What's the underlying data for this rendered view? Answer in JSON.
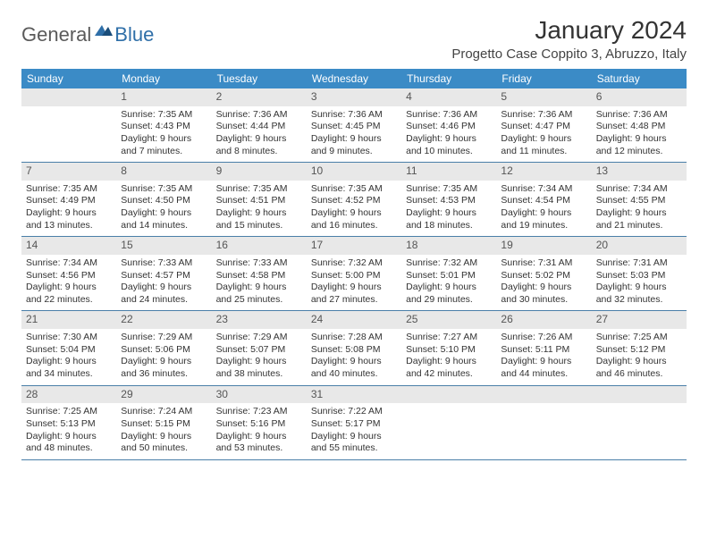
{
  "logo": {
    "text1": "General",
    "text2": "Blue"
  },
  "title": "January 2024",
  "location": "Progetto Case Coppito 3, Abruzzo, Italy",
  "colors": {
    "header_bg": "#3b8bc6",
    "header_text": "#ffffff",
    "daynum_bg": "#e8e8e8",
    "week_divider": "#4a7fa8",
    "body_text": "#333333"
  },
  "daysOfWeek": [
    "Sunday",
    "Monday",
    "Tuesday",
    "Wednesday",
    "Thursday",
    "Friday",
    "Saturday"
  ],
  "weeks": [
    [
      {
        "n": "",
        "sr": "",
        "ss": "",
        "dl": ""
      },
      {
        "n": "1",
        "sr": "Sunrise: 7:35 AM",
        "ss": "Sunset: 4:43 PM",
        "dl": "Daylight: 9 hours and 7 minutes."
      },
      {
        "n": "2",
        "sr": "Sunrise: 7:36 AM",
        "ss": "Sunset: 4:44 PM",
        "dl": "Daylight: 9 hours and 8 minutes."
      },
      {
        "n": "3",
        "sr": "Sunrise: 7:36 AM",
        "ss": "Sunset: 4:45 PM",
        "dl": "Daylight: 9 hours and 9 minutes."
      },
      {
        "n": "4",
        "sr": "Sunrise: 7:36 AM",
        "ss": "Sunset: 4:46 PM",
        "dl": "Daylight: 9 hours and 10 minutes."
      },
      {
        "n": "5",
        "sr": "Sunrise: 7:36 AM",
        "ss": "Sunset: 4:47 PM",
        "dl": "Daylight: 9 hours and 11 minutes."
      },
      {
        "n": "6",
        "sr": "Sunrise: 7:36 AM",
        "ss": "Sunset: 4:48 PM",
        "dl": "Daylight: 9 hours and 12 minutes."
      }
    ],
    [
      {
        "n": "7",
        "sr": "Sunrise: 7:35 AM",
        "ss": "Sunset: 4:49 PM",
        "dl": "Daylight: 9 hours and 13 minutes."
      },
      {
        "n": "8",
        "sr": "Sunrise: 7:35 AM",
        "ss": "Sunset: 4:50 PM",
        "dl": "Daylight: 9 hours and 14 minutes."
      },
      {
        "n": "9",
        "sr": "Sunrise: 7:35 AM",
        "ss": "Sunset: 4:51 PM",
        "dl": "Daylight: 9 hours and 15 minutes."
      },
      {
        "n": "10",
        "sr": "Sunrise: 7:35 AM",
        "ss": "Sunset: 4:52 PM",
        "dl": "Daylight: 9 hours and 16 minutes."
      },
      {
        "n": "11",
        "sr": "Sunrise: 7:35 AM",
        "ss": "Sunset: 4:53 PM",
        "dl": "Daylight: 9 hours and 18 minutes."
      },
      {
        "n": "12",
        "sr": "Sunrise: 7:34 AM",
        "ss": "Sunset: 4:54 PM",
        "dl": "Daylight: 9 hours and 19 minutes."
      },
      {
        "n": "13",
        "sr": "Sunrise: 7:34 AM",
        "ss": "Sunset: 4:55 PM",
        "dl": "Daylight: 9 hours and 21 minutes."
      }
    ],
    [
      {
        "n": "14",
        "sr": "Sunrise: 7:34 AM",
        "ss": "Sunset: 4:56 PM",
        "dl": "Daylight: 9 hours and 22 minutes."
      },
      {
        "n": "15",
        "sr": "Sunrise: 7:33 AM",
        "ss": "Sunset: 4:57 PM",
        "dl": "Daylight: 9 hours and 24 minutes."
      },
      {
        "n": "16",
        "sr": "Sunrise: 7:33 AM",
        "ss": "Sunset: 4:58 PM",
        "dl": "Daylight: 9 hours and 25 minutes."
      },
      {
        "n": "17",
        "sr": "Sunrise: 7:32 AM",
        "ss": "Sunset: 5:00 PM",
        "dl": "Daylight: 9 hours and 27 minutes."
      },
      {
        "n": "18",
        "sr": "Sunrise: 7:32 AM",
        "ss": "Sunset: 5:01 PM",
        "dl": "Daylight: 9 hours and 29 minutes."
      },
      {
        "n": "19",
        "sr": "Sunrise: 7:31 AM",
        "ss": "Sunset: 5:02 PM",
        "dl": "Daylight: 9 hours and 30 minutes."
      },
      {
        "n": "20",
        "sr": "Sunrise: 7:31 AM",
        "ss": "Sunset: 5:03 PM",
        "dl": "Daylight: 9 hours and 32 minutes."
      }
    ],
    [
      {
        "n": "21",
        "sr": "Sunrise: 7:30 AM",
        "ss": "Sunset: 5:04 PM",
        "dl": "Daylight: 9 hours and 34 minutes."
      },
      {
        "n": "22",
        "sr": "Sunrise: 7:29 AM",
        "ss": "Sunset: 5:06 PM",
        "dl": "Daylight: 9 hours and 36 minutes."
      },
      {
        "n": "23",
        "sr": "Sunrise: 7:29 AM",
        "ss": "Sunset: 5:07 PM",
        "dl": "Daylight: 9 hours and 38 minutes."
      },
      {
        "n": "24",
        "sr": "Sunrise: 7:28 AM",
        "ss": "Sunset: 5:08 PM",
        "dl": "Daylight: 9 hours and 40 minutes."
      },
      {
        "n": "25",
        "sr": "Sunrise: 7:27 AM",
        "ss": "Sunset: 5:10 PM",
        "dl": "Daylight: 9 hours and 42 minutes."
      },
      {
        "n": "26",
        "sr": "Sunrise: 7:26 AM",
        "ss": "Sunset: 5:11 PM",
        "dl": "Daylight: 9 hours and 44 minutes."
      },
      {
        "n": "27",
        "sr": "Sunrise: 7:25 AM",
        "ss": "Sunset: 5:12 PM",
        "dl": "Daylight: 9 hours and 46 minutes."
      }
    ],
    [
      {
        "n": "28",
        "sr": "Sunrise: 7:25 AM",
        "ss": "Sunset: 5:13 PM",
        "dl": "Daylight: 9 hours and 48 minutes."
      },
      {
        "n": "29",
        "sr": "Sunrise: 7:24 AM",
        "ss": "Sunset: 5:15 PM",
        "dl": "Daylight: 9 hours and 50 minutes."
      },
      {
        "n": "30",
        "sr": "Sunrise: 7:23 AM",
        "ss": "Sunset: 5:16 PM",
        "dl": "Daylight: 9 hours and 53 minutes."
      },
      {
        "n": "31",
        "sr": "Sunrise: 7:22 AM",
        "ss": "Sunset: 5:17 PM",
        "dl": "Daylight: 9 hours and 55 minutes."
      },
      {
        "n": "",
        "sr": "",
        "ss": "",
        "dl": ""
      },
      {
        "n": "",
        "sr": "",
        "ss": "",
        "dl": ""
      },
      {
        "n": "",
        "sr": "",
        "ss": "",
        "dl": ""
      }
    ]
  ]
}
